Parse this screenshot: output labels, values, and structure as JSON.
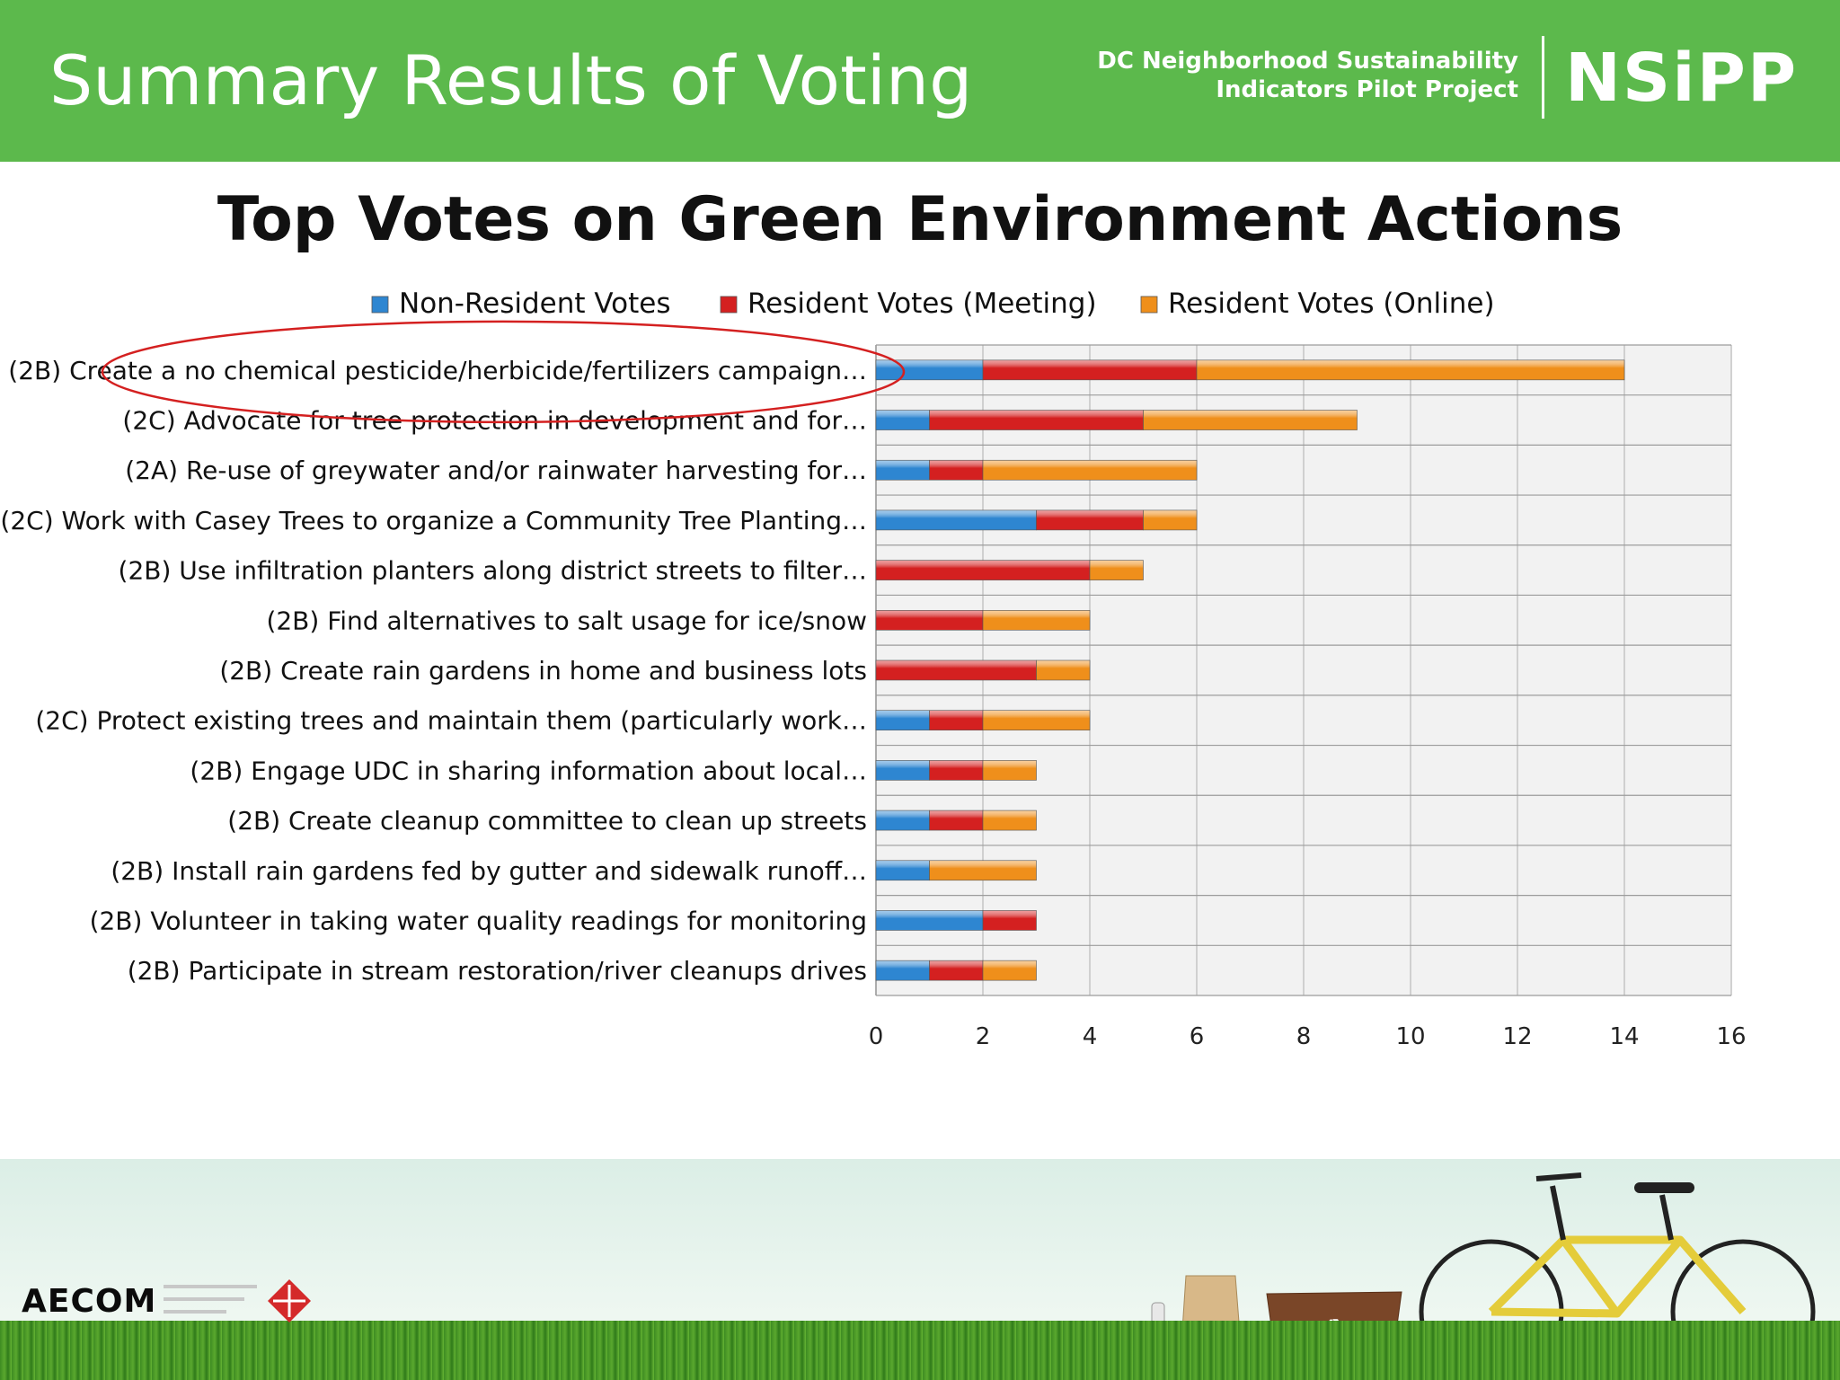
{
  "slide": {
    "title": "Summary Results of Voting",
    "org_line1": "DC Neighborhood Sustainability",
    "org_line2": "Indicators Pilot Project",
    "org_logo": "NSiPP",
    "footer_logo": "AECOM"
  },
  "colors": {
    "header_green": "#5cb94c",
    "non_resident": "#2e86d1",
    "resident_meeting": "#d42020",
    "resident_online": "#ef8f1b",
    "highlight_ellipse": "#d42020"
  },
  "chart_data": {
    "type": "bar",
    "orientation": "horizontal",
    "stacked": true,
    "title": "Top Votes on Green Environment Actions",
    "xlabel": "",
    "ylabel": "",
    "xlim": [
      0,
      16
    ],
    "xticks": [
      0,
      2,
      4,
      6,
      8,
      10,
      12,
      14,
      16
    ],
    "legend_position": "top",
    "highlight": "first category circled in red",
    "categories": [
      "(2B) Create a no chemical pesticide/herbicide/fertilizers campaign…",
      "(2C) Advocate for tree protection in development and for…",
      "(2A) Re-use of greywater and/or rainwater harvesting for…",
      "(2C) Work with Casey Trees to organize a Community Tree Planting…",
      "(2B) Use infiltration planters along district streets to filter…",
      "(2B) Find alternatives to salt usage for ice/snow",
      "(2B) Create rain gardens in home and business lots",
      "(2C) Protect existing trees and maintain them (particularly work…",
      "(2B) Engage UDC in sharing information about local…",
      "(2B) Create cleanup committee to clean up streets",
      "(2B) Install rain gardens fed by gutter and sidewalk runoff…",
      "(2B) Volunteer in taking water quality readings for monitoring",
      "(2B) Participate in stream restoration/river cleanups drives"
    ],
    "series": [
      {
        "name": "Non-Resident Votes",
        "color": "#2e86d1",
        "values": [
          2,
          1,
          1,
          3,
          0,
          0,
          0,
          1,
          1,
          1,
          1,
          2,
          1
        ]
      },
      {
        "name": "Resident Votes (Meeting)",
        "color": "#d42020",
        "values": [
          4,
          4,
          1,
          2,
          4,
          2,
          3,
          1,
          1,
          1,
          0,
          1,
          1
        ]
      },
      {
        "name": "Resident Votes (Online)",
        "color": "#ef8f1b",
        "values": [
          8,
          4,
          4,
          1,
          1,
          2,
          1,
          2,
          1,
          1,
          2,
          0,
          1
        ]
      }
    ]
  }
}
